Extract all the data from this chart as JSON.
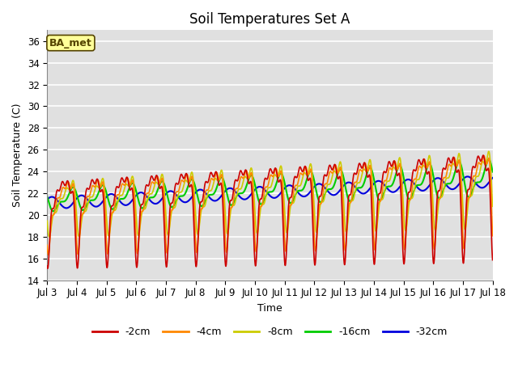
{
  "title": "Soil Temperatures Set A",
  "xlabel": "Time",
  "ylabel": "Soil Temperature (C)",
  "ylim": [
    14,
    37
  ],
  "n_days": 15,
  "x_tick_labels": [
    "Jul 3",
    "Jul 4",
    "Jul 5",
    "Jul 6",
    "Jul 7",
    "Jul 8",
    "Jul 9",
    "Jul 10",
    "Jul 11",
    "Jul 12",
    "Jul 13",
    "Jul 14",
    "Jul 15",
    "Jul 16",
    "Jul 17",
    "Jul 18"
  ],
  "yticks": [
    14,
    16,
    18,
    20,
    22,
    24,
    26,
    28,
    30,
    32,
    34,
    36
  ],
  "colors": {
    "-2cm": "#cc0000",
    "-4cm": "#ff8800",
    "-8cm": "#cccc00",
    "-16cm": "#00cc00",
    "-32cm": "#0000dd"
  },
  "annotation_text": "BA_met",
  "annotation_bg": "#ffff99",
  "annotation_border": "#554400",
  "background_color": "#e0e0e0",
  "grid_color": "#ffffff",
  "title_fontsize": 12,
  "axis_label_fontsize": 9,
  "tick_fontsize": 8.5
}
